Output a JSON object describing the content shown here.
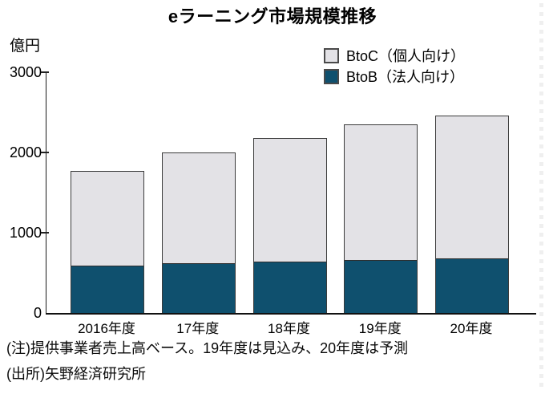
{
  "title": "eラーニング市場規模推移",
  "y_axis_unit": "億円",
  "legend": {
    "items": [
      {
        "label": "BtoC（個人向け）",
        "color": "#e3e2e6"
      },
      {
        "label": "BtoB（法人向け）",
        "color": "#0f506e"
      }
    ]
  },
  "notes": {
    "line1": "(注)提供事業者売上高ベース。19年度は見込み、20年度は予測",
    "line2": "(出所)矢野経済研究所"
  },
  "chart_data": {
    "type": "bar",
    "stacked": true,
    "title": "eラーニング市場規模推移",
    "ylabel": "億円",
    "ylim": [
      0,
      3000
    ],
    "yticks": [
      0,
      1000,
      2000,
      3000
    ],
    "grid": false,
    "legend_position": "top-right",
    "categories": [
      "2016年度",
      "17年度",
      "18年度",
      "19年度",
      "20年度"
    ],
    "series": [
      {
        "name": "BtoB（法人向け）",
        "color": "#0f506e",
        "values": [
          590,
          620,
          640,
          660,
          685
        ]
      },
      {
        "name": "BtoC（個人向け）",
        "color": "#e3e2e6",
        "values": [
          1180,
          1380,
          1545,
          1695,
          1775
        ]
      }
    ],
    "totals": [
      1770,
      2000,
      2185,
      2355,
      2460
    ]
  }
}
